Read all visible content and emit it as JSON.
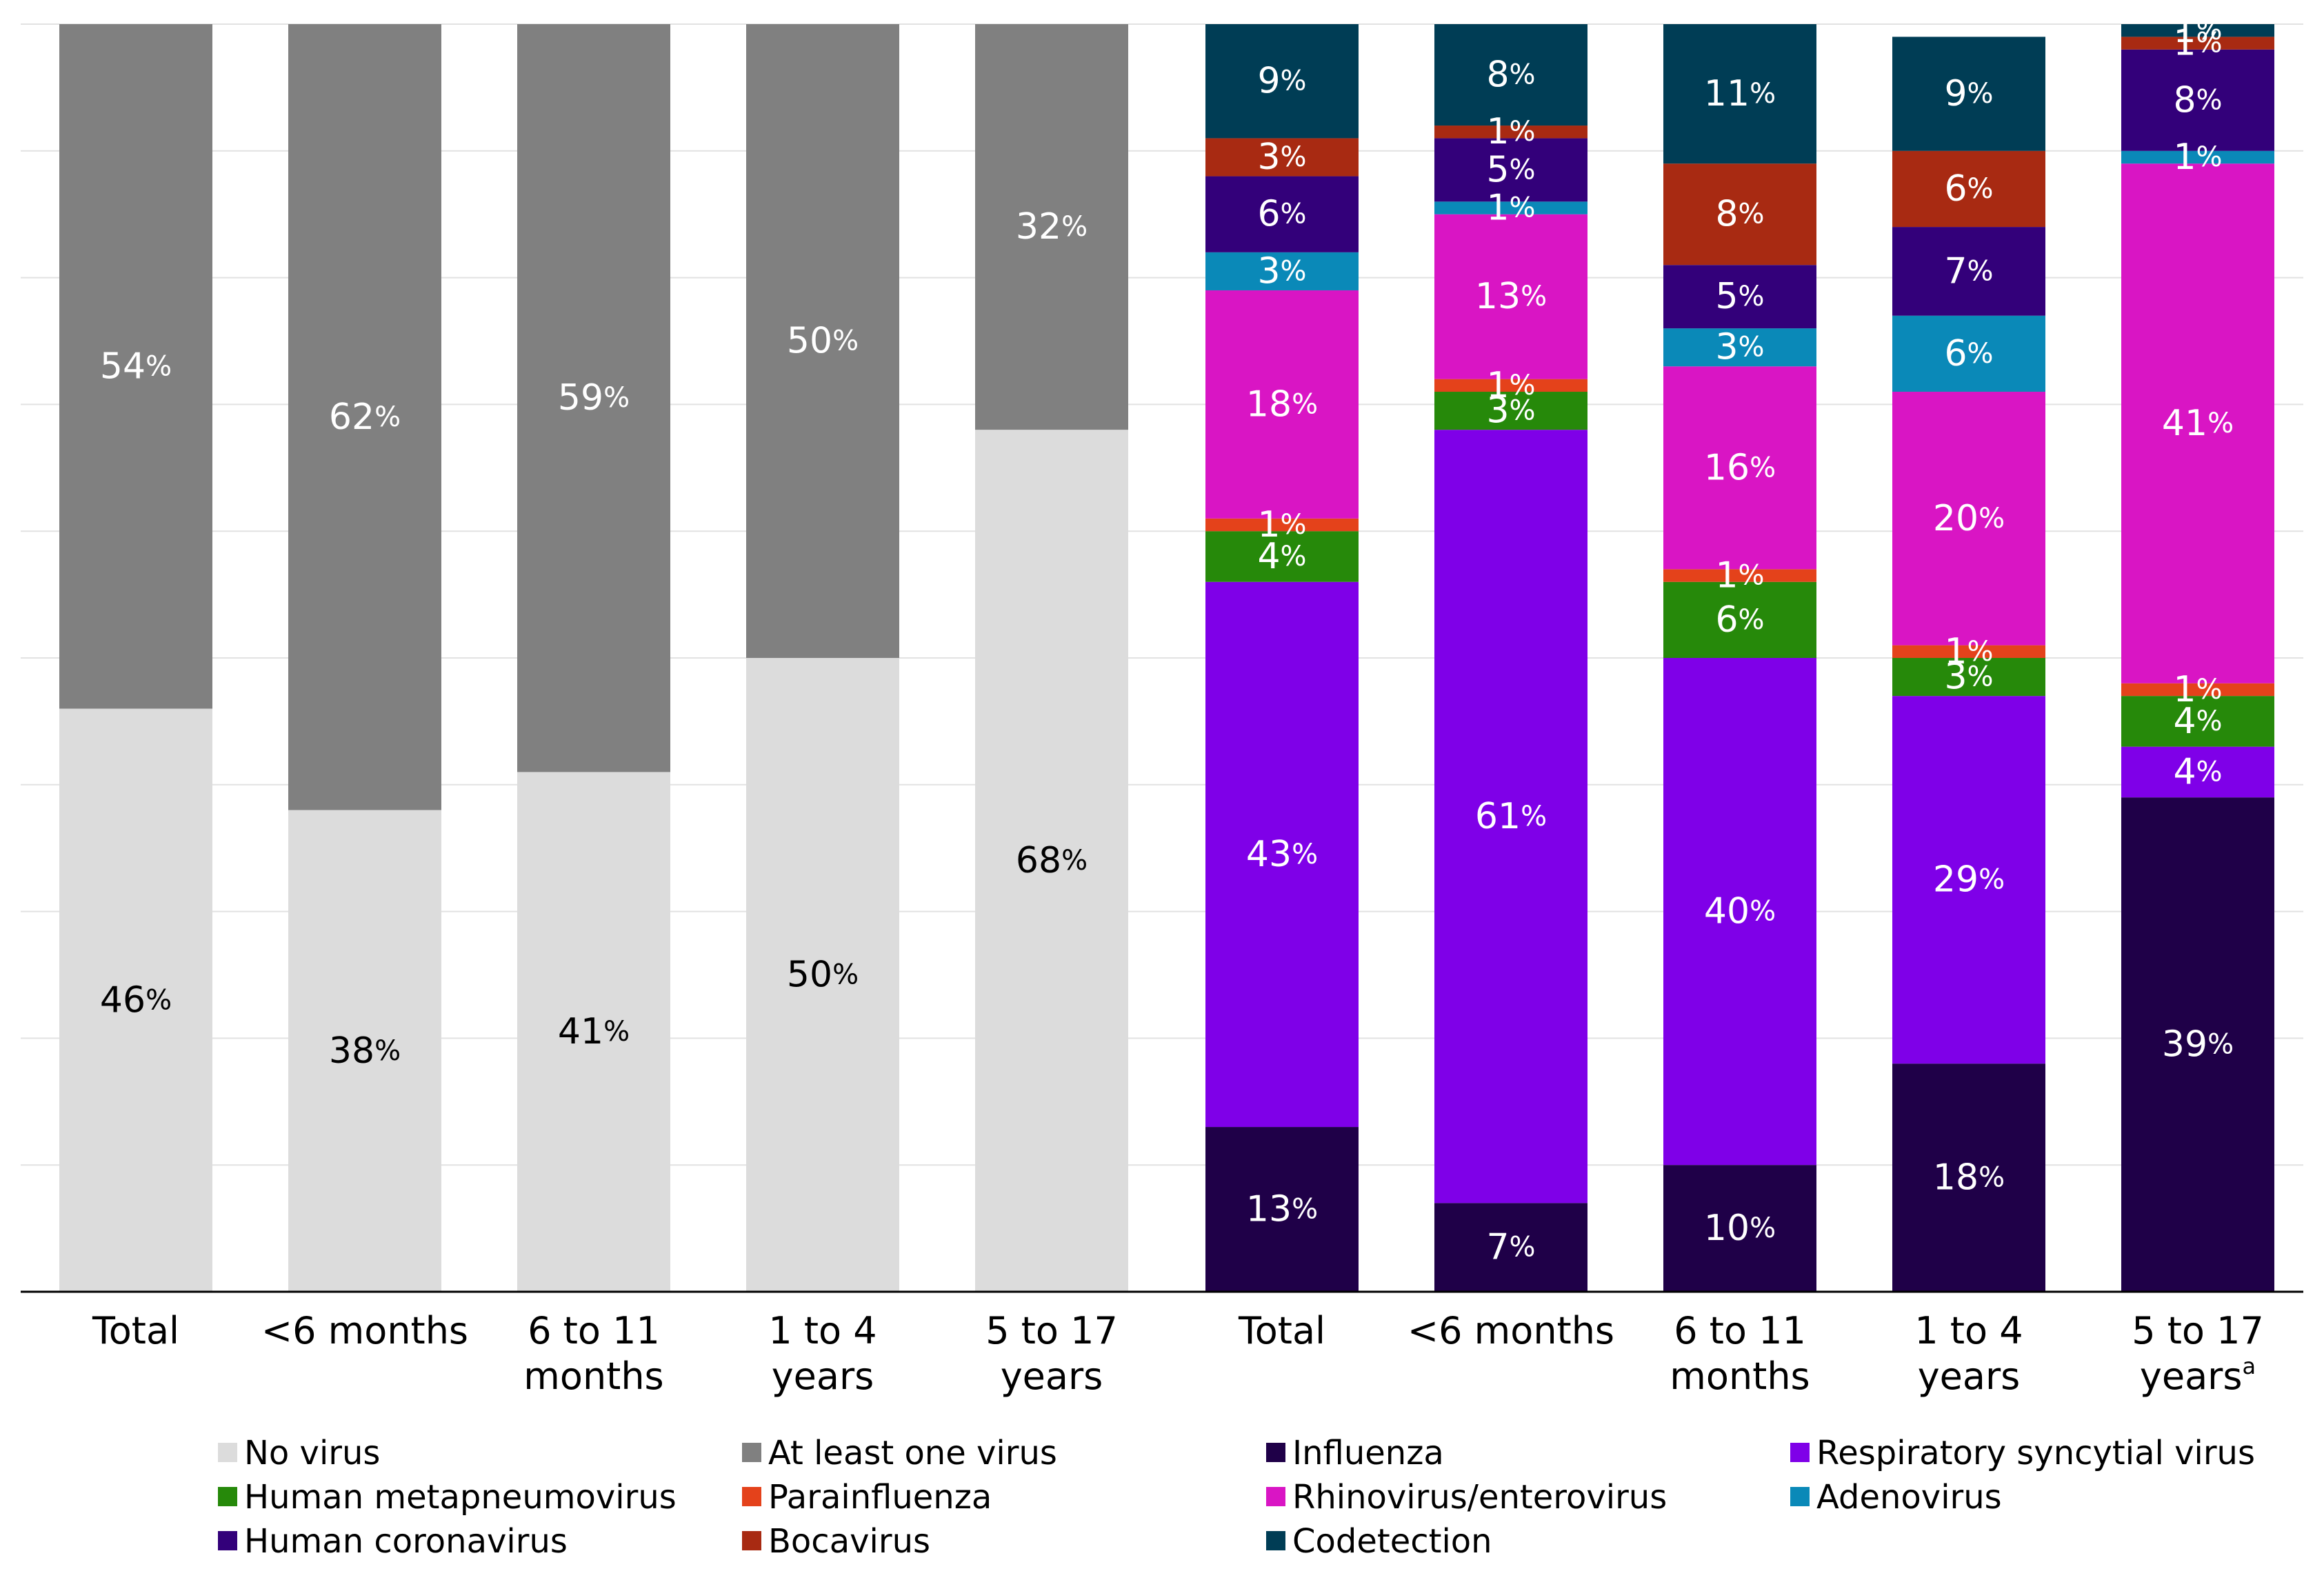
{
  "chart_data": {
    "type": "bar",
    "stacked": true,
    "normalized": true,
    "ylim": [
      0,
      100
    ],
    "grid": true,
    "legend_position": "bottom",
    "percent_sign": "%",
    "groups": [
      {
        "name": "virus_detection",
        "categories": [
          {
            "label": [
              "Total"
            ]
          },
          {
            "label": [
              "<6 months"
            ]
          },
          {
            "label": [
              "6 to 11",
              "months"
            ]
          },
          {
            "label": [
              "1 to 4",
              "years"
            ]
          },
          {
            "label": [
              "5 to 17",
              "years"
            ]
          }
        ],
        "series": [
          {
            "name": "No virus",
            "color": "#dcdcdc",
            "label_color": "#000000",
            "values": [
              46,
              38,
              41,
              50,
              68
            ]
          },
          {
            "name": "At least one virus",
            "color": "#808080",
            "label_color": "#ffffff",
            "values": [
              54,
              62,
              59,
              50,
              32
            ]
          }
        ]
      },
      {
        "name": "virus_type",
        "categories": [
          {
            "label": [
              "Total"
            ]
          },
          {
            "label": [
              "<6 months"
            ]
          },
          {
            "label": [
              "6 to 11",
              "months"
            ]
          },
          {
            "label": [
              "1 to 4",
              "years"
            ]
          },
          {
            "label": [
              "5 to 17",
              "years"
            ],
            "sup": "a"
          }
        ],
        "series": [
          {
            "name": "Influenza",
            "color": "#1f0048",
            "label_color": "#ffffff",
            "values": [
              13,
              7,
              10,
              18,
              39
            ]
          },
          {
            "name": "Respiratory syncytial virus",
            "color": "#7f00e8",
            "label_color": "#ffffff",
            "values": [
              43,
              61,
              40,
              29,
              4
            ]
          },
          {
            "name": "Human metapneumovirus",
            "color": "#26890a",
            "label_color": "#ffffff",
            "values": [
              4,
              3,
              6,
              3,
              4
            ]
          },
          {
            "name": "Parainfluenza",
            "color": "#e4421b",
            "label_color": "#ffffff",
            "values": [
              1,
              1,
              1,
              1,
              1
            ]
          },
          {
            "name": "Rhinovirus/enterovirus",
            "color": "#d915c4",
            "label_color": "#ffffff",
            "values": [
              18,
              13,
              16,
              20,
              41
            ]
          },
          {
            "name": "Adenovirus",
            "color": "#0a89b8",
            "label_color": "#ffffff",
            "values": [
              3,
              1,
              3,
              6,
              1
            ]
          },
          {
            "name": "Human coronavirus",
            "color": "#33007a",
            "label_color": "#ffffff",
            "values": [
              6,
              5,
              5,
              7,
              8
            ]
          },
          {
            "name": "Bocavirus",
            "color": "#a82a12",
            "label_color": "#ffffff",
            "values": [
              3,
              1,
              8,
              6,
              1
            ]
          },
          {
            "name": "Codetection",
            "color": "#003d55",
            "label_color": "#ffffff",
            "values": [
              9,
              8,
              11,
              9,
              1
            ]
          }
        ]
      }
    ],
    "legend": [
      {
        "name": "No virus",
        "color": "#dcdcdc"
      },
      {
        "name": "At least one virus",
        "color": "#808080"
      },
      {
        "name": "Influenza",
        "color": "#1f0048"
      },
      {
        "name": "Respiratory syncytial virus",
        "color": "#7f00e8"
      },
      {
        "name": "Human metapneumovirus",
        "color": "#26890a"
      },
      {
        "name": "Parainfluenza",
        "color": "#e4421b"
      },
      {
        "name": "Rhinovirus/enterovirus",
        "color": "#d915c4"
      },
      {
        "name": "Adenovirus",
        "color": "#0a89b8"
      },
      {
        "name": "Human coronavirus",
        "color": "#33007a"
      },
      {
        "name": "Bocavirus",
        "color": "#a82a12"
      },
      {
        "name": "Codetection",
        "color": "#003d55"
      }
    ]
  }
}
